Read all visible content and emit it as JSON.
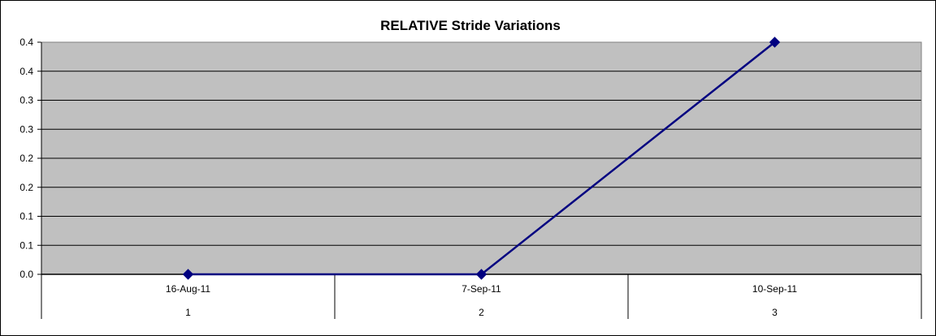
{
  "chart_data": {
    "type": "line",
    "title": "RELATIVE Stride Variations",
    "xlabel": "",
    "ylabel": "",
    "categories": [
      {
        "date": "16-Aug-11",
        "index": "1"
      },
      {
        "date": "7-Sep-11",
        "index": "2"
      },
      {
        "date": "10-Sep-11",
        "index": "3"
      }
    ],
    "series": [
      {
        "values": [
          0.0,
          0.0,
          0.36
        ]
      }
    ],
    "ylim": [
      0.0,
      0.36
    ],
    "y_tick_labels": [
      "0.0",
      "0.1",
      "0.1",
      "0.2",
      "0.2",
      "0.3",
      "0.3",
      "0.4",
      "0.4"
    ],
    "grid": true,
    "legend": "none",
    "colors": {
      "plot_background": "#c0c0c0",
      "gridline": "#000000",
      "series_line": "#000080",
      "marker": "#000080"
    }
  }
}
